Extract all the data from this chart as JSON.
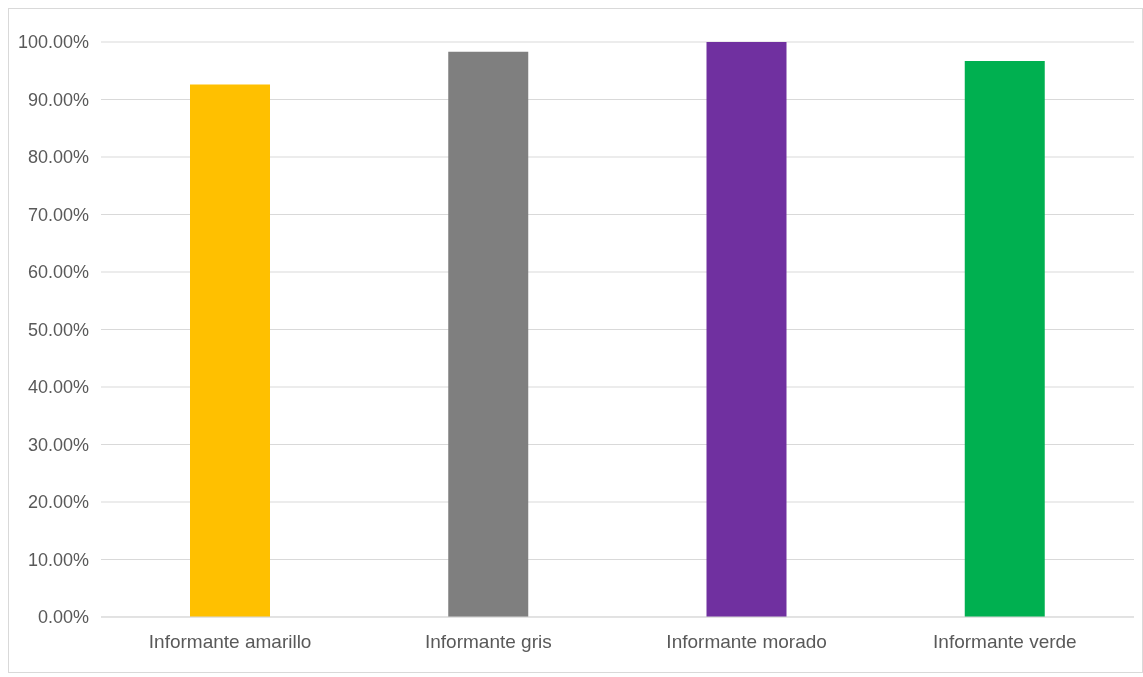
{
  "chart_data": {
    "type": "bar",
    "categories": [
      "Informante amarillo",
      "Informante gris",
      "Informante morado",
      "Informante verde"
    ],
    "values": [
      92.6,
      98.3,
      100,
      96.7
    ],
    "colors": [
      "#ffc000",
      "#7f7f7f",
      "#7030a0",
      "#00b050"
    ],
    "ylim": [
      0,
      100
    ],
    "yticks": [
      {
        "value": 0,
        "label": "0.00%"
      },
      {
        "value": 10,
        "label": "10.00%"
      },
      {
        "value": 20,
        "label": "20.00%"
      },
      {
        "value": 30,
        "label": "30.00%"
      },
      {
        "value": 40,
        "label": "40.00%"
      },
      {
        "value": 50,
        "label": "50.00%"
      },
      {
        "value": 60,
        "label": "60.00%"
      },
      {
        "value": 70,
        "label": "70.00%"
      },
      {
        "value": 80,
        "label": "80.00%"
      },
      {
        "value": 90,
        "label": "90.00%"
      },
      {
        "value": 100,
        "label": "100.00%"
      }
    ],
    "grid": "y",
    "legend": false
  }
}
